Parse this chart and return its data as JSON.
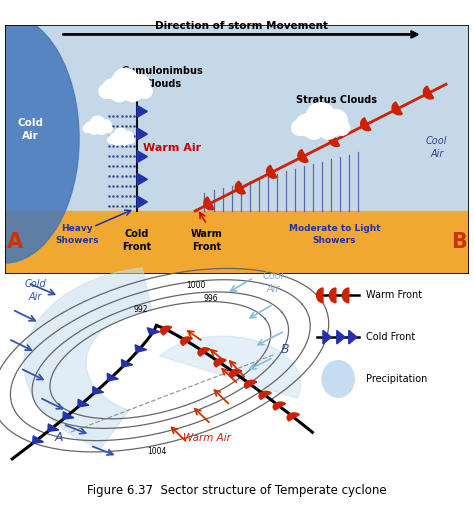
{
  "fig_width": 4.74,
  "fig_height": 5.08,
  "dpi": 100,
  "bg_color": "#ffffff",
  "top_panel": {
    "sky_color": "#c5d8e8",
    "ground_color": "#f0a830",
    "cold_air_color": "#5599cc",
    "title_arrow": "Direction of storm Movement",
    "cold_air_text": "Cold\nAir",
    "cool_air_text": "Cool\nAir",
    "warm_air_text": "Warm Air",
    "cumulo_text": "Cumulonimbus\nClouds",
    "stratus_text": "Stratus Clouds",
    "heavy_showers": "Heavy\nShowers",
    "cold_front_text": "Cold\nFront",
    "warm_front_text": "Warm\nFront",
    "moderate_text": "Moderate to Light\nShowers",
    "label_A": "A",
    "label_B": "B"
  },
  "bottom_panel": {
    "cold_air_label": "Cold\nAir",
    "cool_air_label": "Cool\nAir",
    "warm_air_label": "Warm Air",
    "legend_warm_front": "Warm Front",
    "legend_cold_front": "Cold Front",
    "legend_precip": "Precipitation",
    "A_label": "A",
    "B_label": "B",
    "fig_caption": "Figure 6.37  Sector structure of Temperate cyclone"
  },
  "colors": {
    "cold_blue": "#4477bb",
    "warm_red": "#cc2200",
    "cold_front_tri": "#2233aa",
    "warm_front_semi": "#cc2200",
    "isobar": "#555555",
    "precip_fill": "#c5ddf0",
    "sky_blue": "#c5d8e8",
    "ground_orange": "#f0a830",
    "cold_arrow": "#3355aa",
    "warm_arrow": "#cc3300",
    "cool_arrow": "#88bbdd"
  }
}
